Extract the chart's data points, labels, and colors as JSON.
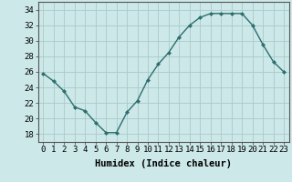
{
  "x": [
    0,
    1,
    2,
    3,
    4,
    5,
    6,
    7,
    8,
    9,
    10,
    11,
    12,
    13,
    14,
    15,
    16,
    17,
    18,
    19,
    20,
    21,
    22,
    23
  ],
  "y": [
    25.8,
    24.8,
    23.5,
    21.5,
    21.0,
    19.5,
    18.2,
    18.2,
    20.8,
    22.3,
    25.0,
    27.0,
    28.5,
    30.5,
    32.0,
    33.0,
    33.5,
    33.5,
    33.5,
    33.5,
    32.0,
    29.5,
    27.3,
    26.0
  ],
  "line_color": "#2d6e6e",
  "marker": "D",
  "marker_size": 2.0,
  "line_width": 1.0,
  "xlabel": "Humidex (Indice chaleur)",
  "xlim": [
    -0.5,
    23.5
  ],
  "ylim": [
    17,
    35
  ],
  "yticks": [
    18,
    20,
    22,
    24,
    26,
    28,
    30,
    32,
    34
  ],
  "xticks": [
    0,
    1,
    2,
    3,
    4,
    5,
    6,
    7,
    8,
    9,
    10,
    11,
    12,
    13,
    14,
    15,
    16,
    17,
    18,
    19,
    20,
    21,
    22,
    23
  ],
  "bg_color": "#cce8e8",
  "grid_color": "#aacaca",
  "tick_fontsize": 6.5,
  "xlabel_fontsize": 7.5
}
